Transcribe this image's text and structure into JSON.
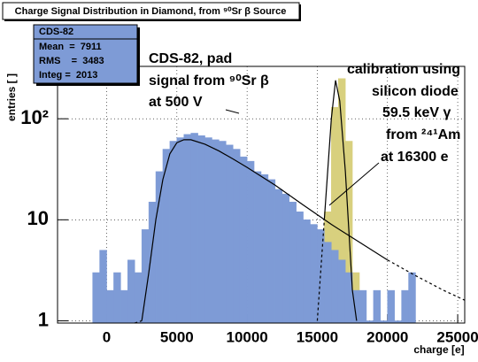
{
  "chart_data": {
    "type": "histogram",
    "title": "Charge Signal Distribution in Diamond, from ⁹⁰Sr β Source",
    "x_label": "charge [e]",
    "y_label": "entries [ ]",
    "xlim": [
      -3500,
      25500
    ],
    "ylim": [
      0.95,
      330
    ],
    "log_y": true,
    "grid": true,
    "xticks": [
      0,
      5000,
      10000,
      15000,
      20000,
      25000
    ],
    "yticks": [
      1,
      10,
      {
        "value": 100,
        "label": "10²"
      }
    ],
    "stats": {
      "title": "CDS-82",
      "rows": [
        "Mean  =  7911",
        "RMS    =  3483",
        "Integ =  2013"
      ]
    },
    "annotations": [
      {
        "lines": [
          "CDS-82, pad",
          "signal from ⁹⁰Sr β",
          "at 500 V"
        ]
      },
      {
        "lines": [
          "calibration using",
          "silicon diode",
          "59.5 keV γ",
          "from ²⁴¹Am",
          "at 16300 e"
        ]
      }
    ],
    "histograms": [
      {
        "color": "#d8d07e",
        "bins": [
          13000,
          13500,
          14000,
          14500,
          15000,
          15500,
          16000,
          16500,
          17000,
          17500,
          18000
        ],
        "values": [
          4,
          6,
          8,
          6,
          3,
          12,
          130,
          250,
          60,
          3
        ]
      },
      {
        "color": "#7e9bd6",
        "bins": [
          -1000,
          -500,
          0,
          500,
          1000,
          1500,
          2000,
          2500,
          3000,
          3500,
          4000,
          4500,
          5000,
          5500,
          6000,
          6500,
          7000,
          7500,
          8000,
          8500,
          9000,
          9500,
          10000,
          10500,
          11000,
          11500,
          12000,
          12500,
          13000,
          13500,
          14000,
          14500,
          15000,
          15500,
          16000,
          16500,
          17000,
          17500,
          18000,
          18500,
          19000,
          19500,
          20000,
          20500,
          21000,
          21500,
          22000
        ],
        "values": [
          3,
          5,
          2,
          3,
          2,
          4,
          3,
          8,
          15,
          30,
          50,
          60,
          65,
          70,
          72,
          68,
          65,
          62,
          60,
          55,
          50,
          42,
          38,
          30,
          28,
          25,
          20,
          18,
          15,
          12,
          10,
          9,
          8,
          6,
          5,
          4,
          3,
          2,
          2,
          1,
          2,
          1,
          2,
          1,
          2,
          3
        ]
      }
    ],
    "curves": [
      {
        "color": "#000000",
        "dashed": false,
        "x": [
          2500,
          3000,
          3500,
          4000,
          4500,
          5000,
          5500,
          6000,
          7000,
          8000,
          9000,
          10000,
          12000,
          14000,
          16000,
          18000,
          20000
        ],
        "values": [
          1,
          3,
          10,
          25,
          45,
          58,
          62,
          62,
          56,
          48,
          40,
          33,
          22,
          14,
          9,
          6,
          4
        ]
      },
      {
        "color": "#000000",
        "dashed": true,
        "x": [
          20000,
          22000,
          24000,
          25500
        ],
        "values": [
          4,
          2.8,
          2,
          1.6
        ]
      },
      {
        "color": "#000000",
        "dashed": true,
        "x": [
          2000,
          2500
        ],
        "values": [
          0.95,
          1
        ]
      },
      {
        "color": "#000000",
        "dashed": true,
        "x": [
          15000,
          15500
        ],
        "values": [
          1,
          10
        ]
      },
      {
        "color": "#000000",
        "dashed": false,
        "x": [
          15500,
          16000,
          16300,
          16600,
          17000,
          17500,
          17800
        ],
        "values": [
          10,
          100,
          240,
          150,
          30,
          2,
          1
        ]
      }
    ]
  }
}
